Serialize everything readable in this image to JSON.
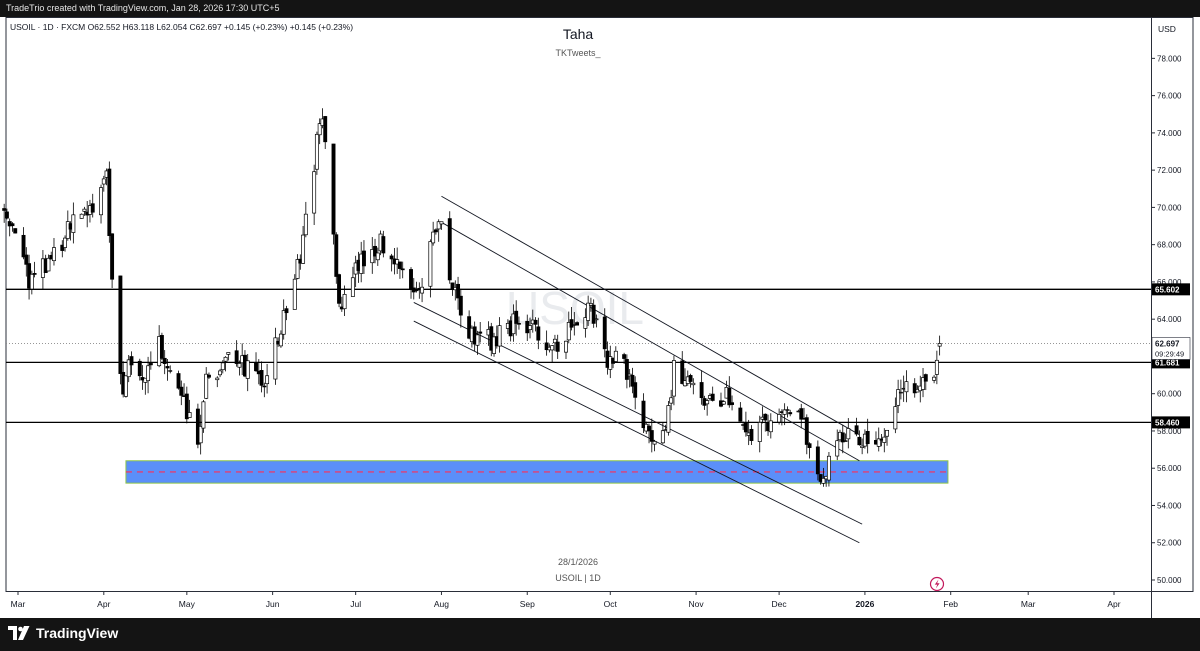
{
  "header": {
    "caption": "TradeTrio created with TradingView.com, Jan 28, 2026 17:30 UTC+5"
  },
  "legend": {
    "text": "USOIL · 1D · FXCM  O62.552  H63.118  L62.054  C62.697  +0.145 (+0.23%)  +0.145 (+0.23%)"
  },
  "chart_title": "Taha",
  "chart_subtitle": "TKTweets_",
  "watermark": "USOIL",
  "center_date": "28/1/2026",
  "center_symbol": "USOIL | 1D",
  "currency": "USD",
  "footer": {
    "brand": "TradingView"
  },
  "colors": {
    "up": "#ffffff",
    "down": "#000000",
    "zone": "#5b8ff9",
    "zone_border": "#8bc34a",
    "midline": "#ff2d55"
  },
  "chart_data": {
    "type": "candlestick",
    "symbol": "USOIL",
    "timeframe": "1D",
    "ylim": [
      49,
      80
    ],
    "y_ticks": [
      "78.000",
      "76.000",
      "74.000",
      "72.000",
      "70.000",
      "68.000",
      "66.000",
      "64.000",
      "62.000",
      "60.000",
      "58.000",
      "56.000",
      "54.000",
      "52.000",
      "50.000"
    ],
    "x_ticks": [
      "Mar",
      "Apr",
      "May",
      "Jun",
      "Jul",
      "Aug",
      "Sep",
      "Oct",
      "Nov",
      "Dec",
      "2026",
      "Feb",
      "Mar",
      "Apr"
    ],
    "x_tick_dates": [
      "2025-03-01",
      "2025-04-01",
      "2025-05-01",
      "2025-06-01",
      "2025-07-01",
      "2025-08-01",
      "2025-09-01",
      "2025-10-01",
      "2025-11-01",
      "2025-12-01",
      "2026-01-01",
      "2026-02-01",
      "2026-03-01",
      "2026-04-01"
    ],
    "levels": [
      {
        "label": "65.602",
        "value": 65.602
      },
      {
        "label": "61.681",
        "value": 61.681
      },
      {
        "label": "58.460",
        "value": 58.46
      }
    ],
    "last_price": {
      "label": "62.697",
      "value": 62.697,
      "countdown": "09:29:49"
    },
    "zone": {
      "from": 55.2,
      "to": 56.4,
      "mid": 55.8,
      "start": "2025-04-09",
      "end": "2026-01-31"
    },
    "channels": [
      {
        "start": [
          "2025-08-01",
          70.6
        ],
        "end": [
          "2025-12-30",
          57.8
        ]
      },
      {
        "start": [
          "2025-08-01",
          69.2
        ],
        "end": [
          "2025-12-30",
          56.4
        ]
      },
      {
        "start": [
          "2025-07-22",
          64.9
        ],
        "end": [
          "2025-12-31",
          53.0
        ]
      },
      {
        "start": [
          "2025-07-22",
          63.9
        ],
        "end": [
          "2025-12-30",
          52.0
        ]
      }
    ],
    "ohlc_waypoints": [
      [
        "2025-02-24",
        69.8
      ],
      [
        "2025-03-05",
        66.2
      ],
      [
        "2025-03-10",
        66.8
      ],
      [
        "2025-03-20",
        68.9
      ],
      [
        "2025-03-28",
        69.8
      ],
      [
        "2025-04-02",
        71.6
      ],
      [
        "2025-04-04",
        66.0
      ],
      [
        "2025-04-08",
        59.5
      ],
      [
        "2025-04-10",
        61.5
      ],
      [
        "2025-04-15",
        60.8
      ],
      [
        "2025-04-21",
        62.8
      ],
      [
        "2025-04-28",
        60.0
      ],
      [
        "2025-05-05",
        57.5
      ],
      [
        "2025-05-08",
        60.5
      ],
      [
        "2025-05-15",
        62.0
      ],
      [
        "2025-05-22",
        61.5
      ],
      [
        "2025-05-30",
        60.8
      ],
      [
        "2025-06-06",
        64.6
      ],
      [
        "2025-06-12",
        68.0
      ],
      [
        "2025-06-16",
        72.5
      ],
      [
        "2025-06-19",
        75.0
      ],
      [
        "2025-06-23",
        68.0
      ],
      [
        "2025-06-25",
        64.8
      ],
      [
        "2025-07-02",
        67.0
      ],
      [
        "2025-07-10",
        68.3
      ],
      [
        "2025-07-17",
        66.8
      ],
      [
        "2025-07-24",
        65.4
      ],
      [
        "2025-07-31",
        69.8
      ],
      [
        "2025-08-05",
        65.5
      ],
      [
        "2025-08-12",
        63.2
      ],
      [
        "2025-08-20",
        62.8
      ],
      [
        "2025-08-27",
        63.8
      ],
      [
        "2025-09-03",
        63.5
      ],
      [
        "2025-09-09",
        62.2
      ],
      [
        "2025-09-16",
        63.3
      ],
      [
        "2025-09-24",
        64.5
      ],
      [
        "2025-09-30",
        62.0
      ],
      [
        "2025-10-06",
        61.5
      ],
      [
        "2025-10-10",
        59.7
      ],
      [
        "2025-10-16",
        57.5
      ],
      [
        "2025-10-21",
        57.8
      ],
      [
        "2025-10-24",
        61.5
      ],
      [
        "2025-10-30",
        60.5
      ],
      [
        "2025-11-06",
        59.6
      ],
      [
        "2025-11-14",
        60.0
      ],
      [
        "2025-11-20",
        58.0
      ],
      [
        "2025-11-28",
        58.5
      ],
      [
        "2025-12-04",
        59.6
      ],
      [
        "2025-12-10",
        58.3
      ],
      [
        "2025-12-16",
        55.3
      ],
      [
        "2025-12-22",
        57.5
      ],
      [
        "2025-12-31",
        57.6
      ],
      [
        "2026-01-06",
        57.2
      ],
      [
        "2026-01-12",
        59.6
      ],
      [
        "2026-01-15",
        60.6
      ],
      [
        "2026-01-20",
        59.8
      ],
      [
        "2026-01-26",
        61.2
      ],
      [
        "2026-01-28",
        62.697
      ]
    ]
  }
}
